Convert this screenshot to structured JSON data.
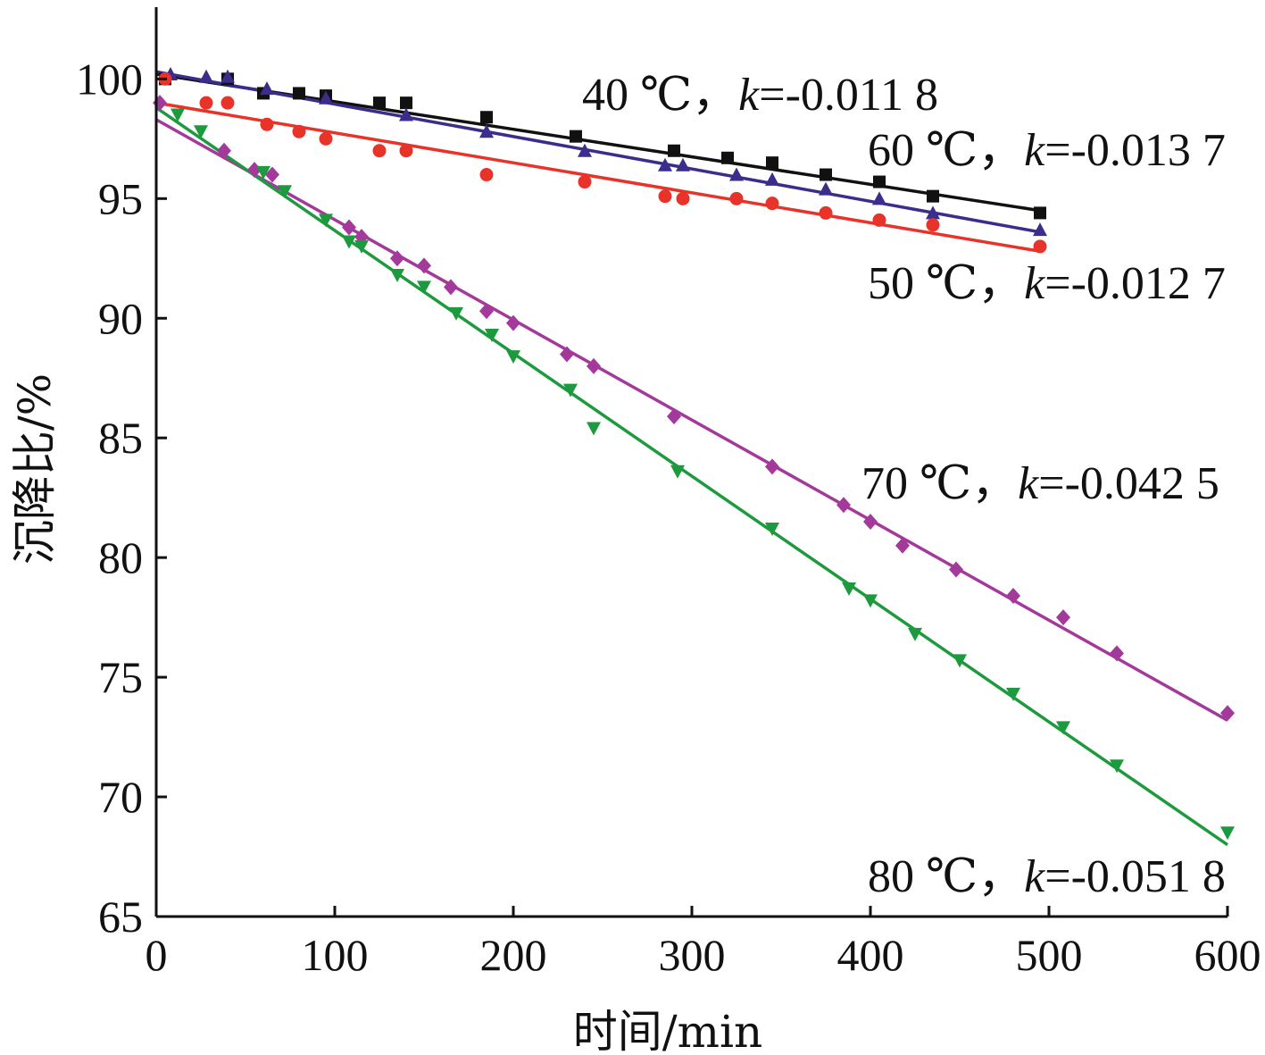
{
  "chart_data": {
    "type": "scatter",
    "xlabel": "时间/min",
    "ylabel": "沉降比/%",
    "xlim": [
      0,
      600
    ],
    "ylim": [
      65,
      103
    ],
    "xticks": [
      "0",
      "100",
      "200",
      "300",
      "400",
      "500",
      "600"
    ],
    "yticks": [
      "65",
      "70",
      "75",
      "80",
      "85",
      "90",
      "95",
      "100"
    ],
    "grid": false,
    "series": [
      {
        "name": "40 ℃, k=-0.011 8",
        "label_prefix": "40 ℃，",
        "label_k": "k",
        "label_value": "=-0.011 8",
        "color": "#111111",
        "marker": "square",
        "fit": {
          "x": [
            0,
            495
          ],
          "y": [
            100.2,
            94.5
          ]
        },
        "points": [
          [
            5,
            100.0
          ],
          [
            40,
            100.0
          ],
          [
            60,
            99.4
          ],
          [
            80,
            99.4
          ],
          [
            95,
            99.3
          ],
          [
            125,
            99.0
          ],
          [
            140,
            99.0
          ],
          [
            185,
            98.4
          ],
          [
            235,
            97.6
          ],
          [
            290,
            97.0
          ],
          [
            320,
            96.7
          ],
          [
            345,
            96.5
          ],
          [
            375,
            96.0
          ],
          [
            405,
            95.7
          ],
          [
            435,
            95.1
          ],
          [
            495,
            94.4
          ]
        ]
      },
      {
        "name": "60 ℃, k=-0.013 7",
        "label_prefix": "60 ℃，",
        "label_k": "k",
        "label_value": "=-0.013 7",
        "color": "#3a2d8c",
        "marker": "triangle-up",
        "fit": {
          "x": [
            0,
            495
          ],
          "y": [
            100.3,
            93.6
          ]
        },
        "points": [
          [
            8,
            100.2
          ],
          [
            28,
            100.1
          ],
          [
            40,
            100.1
          ],
          [
            62,
            99.6
          ],
          [
            95,
            99.2
          ],
          [
            140,
            98.5
          ],
          [
            185,
            97.8
          ],
          [
            240,
            97.0
          ],
          [
            285,
            96.4
          ],
          [
            295,
            96.4
          ],
          [
            325,
            96.0
          ],
          [
            345,
            95.8
          ],
          [
            375,
            95.4
          ],
          [
            405,
            95.0
          ],
          [
            435,
            94.4
          ],
          [
            495,
            93.7
          ]
        ]
      },
      {
        "name": "50 ℃, k=-0.012 7",
        "label_prefix": "50 ℃，",
        "label_k": "k",
        "label_value": "=-0.012 7",
        "color": "#e8332a",
        "marker": "circle",
        "fit": {
          "x": [
            0,
            495
          ],
          "y": [
            99.0,
            92.8
          ]
        },
        "points": [
          [
            5,
            100.0
          ],
          [
            28,
            99.0
          ],
          [
            40,
            99.0
          ],
          [
            62,
            98.1
          ],
          [
            80,
            97.8
          ],
          [
            95,
            97.5
          ],
          [
            125,
            97.0
          ],
          [
            140,
            97.0
          ],
          [
            185,
            96.0
          ],
          [
            240,
            95.7
          ],
          [
            285,
            95.1
          ],
          [
            295,
            95.0
          ],
          [
            325,
            95.0
          ],
          [
            345,
            94.8
          ],
          [
            375,
            94.4
          ],
          [
            405,
            94.1
          ],
          [
            435,
            93.9
          ],
          [
            495,
            93.0
          ]
        ]
      },
      {
        "name": "70 ℃, k=-0.042 5",
        "label_prefix": "70 ℃，",
        "label_k": "k",
        "label_value": "=-0.042 5",
        "color": "#a33a9b",
        "marker": "diamond",
        "fit": {
          "x": [
            0,
            600
          ],
          "y": [
            98.3,
            73.2
          ]
        },
        "points": [
          [
            2,
            99.0
          ],
          [
            38,
            97.0
          ],
          [
            55,
            96.2
          ],
          [
            65,
            96.0
          ],
          [
            108,
            93.8
          ],
          [
            115,
            93.4
          ],
          [
            135,
            92.5
          ],
          [
            150,
            92.2
          ],
          [
            165,
            91.3
          ],
          [
            185,
            90.3
          ],
          [
            200,
            89.8
          ],
          [
            230,
            88.5
          ],
          [
            245,
            88.0
          ],
          [
            290,
            85.9
          ],
          [
            345,
            83.8
          ],
          [
            385,
            82.2
          ],
          [
            400,
            81.5
          ],
          [
            418,
            80.5
          ],
          [
            448,
            79.5
          ],
          [
            480,
            78.4
          ],
          [
            508,
            77.5
          ],
          [
            538,
            76.0
          ],
          [
            600,
            73.5
          ]
        ]
      },
      {
        "name": "80 ℃, k=-0.051 8",
        "label_prefix": "80 ℃，",
        "label_k": "k",
        "label_value": "=-0.051 8",
        "color": "#1e9a3e",
        "marker": "triangle-down",
        "fit": {
          "x": [
            0,
            600
          ],
          "y": [
            98.8,
            68.0
          ]
        },
        "points": [
          [
            12,
            98.5
          ],
          [
            25,
            97.8
          ],
          [
            60,
            96.1
          ],
          [
            72,
            95.3
          ],
          [
            95,
            94.1
          ],
          [
            108,
            93.2
          ],
          [
            115,
            93.0
          ],
          [
            135,
            91.8
          ],
          [
            150,
            91.3
          ],
          [
            168,
            90.2
          ],
          [
            188,
            89.3
          ],
          [
            200,
            88.4
          ],
          [
            232,
            87.0
          ],
          [
            245,
            85.4
          ],
          [
            292,
            83.6
          ],
          [
            345,
            81.2
          ],
          [
            388,
            78.7
          ],
          [
            400,
            78.2
          ],
          [
            425,
            76.8
          ],
          [
            450,
            75.7
          ],
          [
            480,
            74.3
          ],
          [
            508,
            72.9
          ],
          [
            538,
            71.3
          ],
          [
            600,
            68.5
          ]
        ]
      }
    ]
  }
}
